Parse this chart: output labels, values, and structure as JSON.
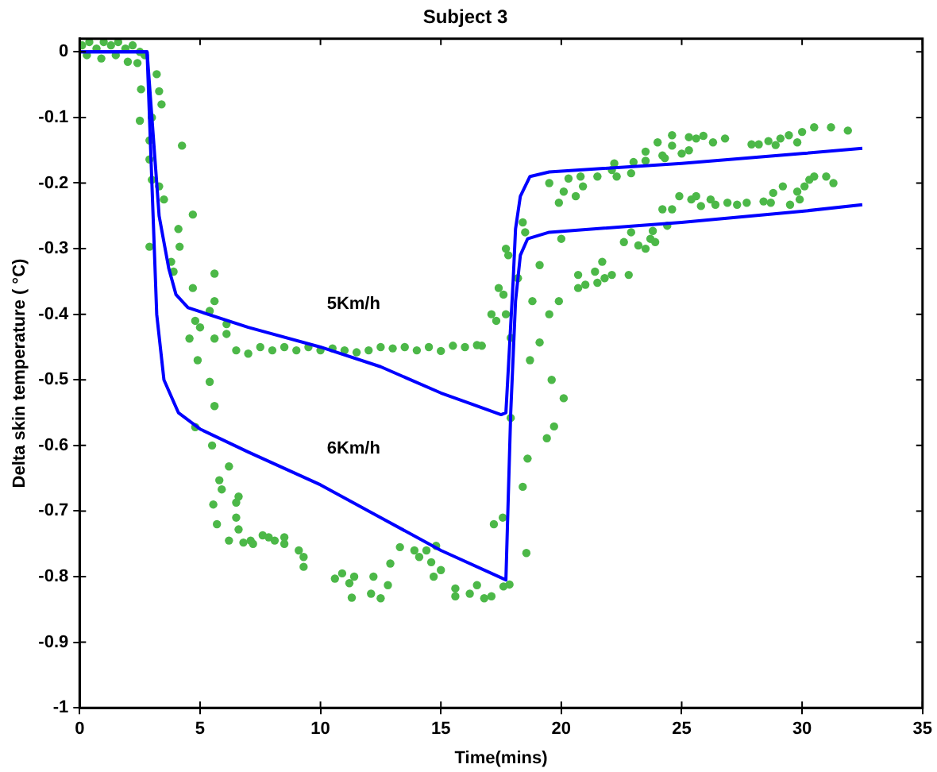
{
  "chart_data": {
    "type": "scatter",
    "title": "Subject 3",
    "xlabel": "Time(mins)",
    "ylabel": "Delta skin temperature ( °C)",
    "xlim": [
      0,
      35
    ],
    "xticks": [
      0,
      5,
      10,
      15,
      20,
      25,
      30,
      35
    ],
    "ylim": [
      -1,
      0.02
    ],
    "yticks": [
      {
        "value": 0,
        "label": "0"
      },
      {
        "value": -0.1,
        "label": "-0.1"
      },
      {
        "value": -0.2,
        "label": "-0.2"
      },
      {
        "value": -0.3,
        "label": "-0.3"
      },
      {
        "value": -0.4,
        "label": "-0.4"
      },
      {
        "value": -0.5,
        "label": "-0.5"
      },
      {
        "value": -0.6,
        "label": "-0.6"
      },
      {
        "value": -0.7,
        "label": "-0.7"
      },
      {
        "value": -0.8,
        "label": "-0.8"
      },
      {
        "value": -0.9,
        "label": "-0.9"
      },
      {
        "value": -1,
        "label": "-1"
      }
    ],
    "grid": false,
    "legend": false,
    "series": [
      {
        "type": "line",
        "name": "5Km/h",
        "color": "#0000ff",
        "marker": "none",
        "x": [
          0,
          2.8,
          3.0,
          3.3,
          3.7,
          4.0,
          4.5,
          7,
          10,
          12.5,
          15,
          17.5,
          17.7,
          18.0,
          18.1,
          18.3,
          18.7,
          19.5,
          25,
          30,
          32.5
        ],
        "values": [
          0,
          0,
          -0.1,
          -0.25,
          -0.33,
          -0.37,
          -0.39,
          -0.42,
          -0.45,
          -0.48,
          -0.52,
          -0.553,
          -0.55,
          -0.35,
          -0.27,
          -0.22,
          -0.19,
          -0.183,
          -0.17,
          -0.155,
          -0.147
        ]
      },
      {
        "type": "line",
        "name": "6Km/h",
        "color": "#0000ff",
        "marker": "none",
        "x": [
          0,
          2.8,
          3.0,
          3.2,
          3.5,
          4.1,
          5,
          7,
          10,
          12.5,
          15,
          17.7,
          17.9,
          18.1,
          18.3,
          18.6,
          19.5,
          25,
          30,
          32.5
        ],
        "values": [
          0,
          0,
          -0.2,
          -0.4,
          -0.5,
          -0.55,
          -0.575,
          -0.61,
          -0.66,
          -0.71,
          -0.76,
          -0.805,
          -0.55,
          -0.38,
          -0.31,
          -0.285,
          -0.275,
          -0.26,
          -0.243,
          -0.233
        ]
      },
      {
        "type": "scatter",
        "color": "#4cb848",
        "marker": "circle",
        "x": [
          0.1,
          0.4,
          0.7,
          1.0,
          1.3,
          1.6,
          1.9,
          2.2,
          2.5,
          2.7,
          0.3,
          0.9,
          1.5,
          2.0,
          2.4,
          2.55,
          2.5,
          3.2,
          3.3,
          3.4,
          3.0,
          2.9,
          2.9,
          3.0,
          3.3,
          3.5,
          4.25,
          2.9,
          4.1,
          4.15,
          4.7,
          3.8,
          3.9,
          4.7,
          5.6,
          4.8,
          5.0,
          5.6,
          5.4,
          4.56,
          4.9,
          5.6,
          6.1,
          6.1,
          6.5,
          7.0,
          7.5,
          8.0,
          8.5,
          9.0,
          9.5,
          10.0,
          10.5,
          11.0,
          11.5,
          12.0,
          12.5,
          13.0,
          13.5,
          14.0,
          14.5,
          15.0,
          15.5,
          16.0,
          16.5,
          16.7,
          17.1,
          17.3,
          17.4,
          17.7,
          17.9,
          19.5,
          19.9,
          20.1,
          20.3,
          20.6,
          20.8,
          20.9,
          21.5,
          22.1,
          22.3,
          22.2,
          22.9,
          23.0,
          23.5,
          23.5,
          24.0,
          24.2,
          24.3,
          24.6,
          24.6,
          25.0,
          25.3,
          25.3,
          25.6,
          25.9,
          26.3,
          26.8,
          27.9,
          28.2,
          28.6,
          28.9,
          29.1,
          29.45,
          29.8,
          30.0,
          30.5,
          31.2,
          31.9
        ],
        "values": [
          0.01,
          0.015,
          0.005,
          0.015,
          0.01,
          0.015,
          0.005,
          0.01,
          0.0,
          -0.005,
          -0.005,
          -0.01,
          -0.005,
          -0.015,
          -0.017,
          -0.057,
          -0.105,
          -0.034,
          -0.06,
          -0.08,
          -0.1,
          -0.135,
          -0.164,
          -0.195,
          -0.205,
          -0.225,
          -0.143,
          -0.297,
          -0.27,
          -0.297,
          -0.248,
          -0.32,
          -0.335,
          -0.36,
          -0.338,
          -0.41,
          -0.42,
          -0.38,
          -0.395,
          -0.437,
          -0.47,
          -0.437,
          -0.415,
          -0.43,
          -0.455,
          -0.46,
          -0.45,
          -0.455,
          -0.45,
          -0.455,
          -0.45,
          -0.455,
          -0.452,
          -0.455,
          -0.458,
          -0.455,
          -0.45,
          -0.452,
          -0.45,
          -0.455,
          -0.45,
          -0.456,
          -0.448,
          -0.45,
          -0.447,
          -0.448,
          -0.4,
          -0.41,
          -0.36,
          -0.3,
          -0.436,
          -0.2,
          -0.23,
          -0.213,
          -0.193,
          -0.22,
          -0.19,
          -0.205,
          -0.19,
          -0.18,
          -0.19,
          -0.17,
          -0.185,
          -0.168,
          -0.166,
          -0.152,
          -0.138,
          -0.158,
          -0.162,
          -0.143,
          -0.127,
          -0.155,
          -0.13,
          -0.15,
          -0.132,
          -0.128,
          -0.138,
          -0.132,
          -0.141,
          -0.141,
          -0.136,
          -0.142,
          -0.132,
          -0.127,
          -0.138,
          -0.122,
          -0.115,
          -0.115,
          -0.12
        ]
      },
      {
        "type": "scatter",
        "color": "#4cb848",
        "marker": "circle",
        "x": [
          4.8,
          5.4,
          5.6,
          5.5,
          5.55,
          5.7,
          5.8,
          5.9,
          6.2,
          6.2,
          6.5,
          6.5,
          6.6,
          6.6,
          6.8,
          7.1,
          7.2,
          7.6,
          7.85,
          8.1,
          8.5,
          8.5,
          9.1,
          9.3,
          9.3,
          10.6,
          10.9,
          11.2,
          11.3,
          11.4,
          12.1,
          12.2,
          12.5,
          12.8,
          12.9,
          13.3,
          13.9,
          14.1,
          14.4,
          14.6,
          14.8,
          14.7,
          15.0,
          15.6,
          15.6,
          16.2,
          16.5,
          16.8,
          17.1,
          17.2,
          17.6,
          17.57,
          17.9,
          17.85,
          18.55,
          18.4,
          18.6,
          19.4,
          19.7,
          19.6,
          20.1,
          19.1,
          18.7,
          19.5,
          19.9,
          18.8,
          19.1,
          18.2,
          17.7,
          17.6,
          17.8,
          18.4,
          18.5,
          20.0,
          20.7,
          20.7,
          21.0,
          21.5,
          21.4,
          21.7,
          21.8,
          22.1,
          22.8,
          22.6,
          22.9,
          23.2,
          23.5,
          23.7,
          23.8,
          23.9,
          24.2,
          24.4,
          24.6,
          24.9,
          25.4,
          25.6,
          25.8,
          26.2,
          26.4,
          26.9,
          27.3,
          27.7,
          28.4,
          28.7,
          28.8,
          29.2,
          29.5,
          29.9,
          29.8,
          30.1,
          30.3,
          30.5,
          31.0,
          31.3
        ],
        "values": [
          -0.572,
          -0.503,
          -0.54,
          -0.6,
          -0.69,
          -0.72,
          -0.653,
          -0.667,
          -0.632,
          -0.745,
          -0.687,
          -0.71,
          -0.678,
          -0.728,
          -0.748,
          -0.745,
          -0.75,
          -0.737,
          -0.74,
          -0.745,
          -0.74,
          -0.75,
          -0.76,
          -0.785,
          -0.77,
          -0.803,
          -0.795,
          -0.81,
          -0.832,
          -0.8,
          -0.826,
          -0.8,
          -0.833,
          -0.813,
          -0.78,
          -0.755,
          -0.76,
          -0.77,
          -0.76,
          -0.778,
          -0.753,
          -0.8,
          -0.79,
          -0.818,
          -0.83,
          -0.826,
          -0.813,
          -0.833,
          -0.83,
          -0.72,
          -0.815,
          -0.71,
          -0.558,
          -0.812,
          -0.764,
          -0.663,
          -0.62,
          -0.589,
          -0.571,
          -0.5,
          -0.528,
          -0.443,
          -0.47,
          -0.4,
          -0.38,
          -0.38,
          -0.325,
          -0.345,
          -0.4,
          -0.37,
          -0.31,
          -0.26,
          -0.275,
          -0.285,
          -0.34,
          -0.36,
          -0.355,
          -0.352,
          -0.335,
          -0.32,
          -0.345,
          -0.34,
          -0.34,
          -0.29,
          -0.275,
          -0.295,
          -0.3,
          -0.285,
          -0.273,
          -0.29,
          -0.24,
          -0.265,
          -0.24,
          -0.22,
          -0.225,
          -0.22,
          -0.235,
          -0.225,
          -0.233,
          -0.23,
          -0.233,
          -0.23,
          -0.228,
          -0.23,
          -0.215,
          -0.205,
          -0.233,
          -0.225,
          -0.213,
          -0.205,
          -0.195,
          -0.19,
          -0.19,
          -0.2
        ]
      }
    ]
  }
}
